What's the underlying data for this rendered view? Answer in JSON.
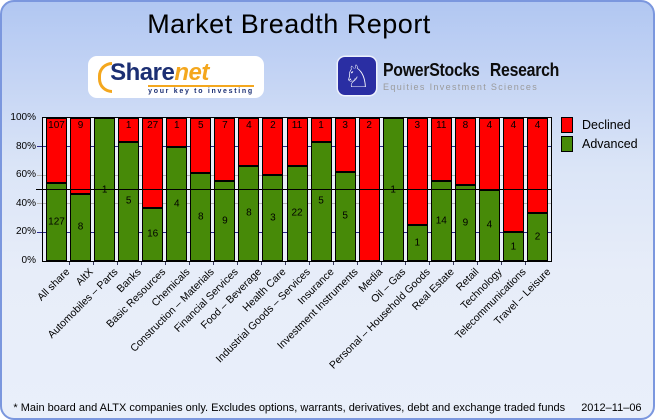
{
  "header": {
    "title": "Market Breadth Report"
  },
  "logos": {
    "sharenet": {
      "word_main": "Share",
      "word_accent": "net",
      "tagline": "your key to investing"
    },
    "powerstocks": {
      "knight_glyph": "♘",
      "name": "PowerStocks Research",
      "tagline": "Equities Investment Sciences"
    }
  },
  "legend": {
    "items": [
      {
        "label": "Declined",
        "color": "#ff0000"
      },
      {
        "label": "Advanced",
        "color": "#478a08"
      }
    ]
  },
  "footer": {
    "note": "* Main board and ALTX companies only. Excludes options, warrants, derivatives, debt and exchange traded funds",
    "date": "2012–11–06"
  },
  "chart_data": {
    "type": "bar",
    "variant": "100%-stacked-columns",
    "title": "Market Breadth Report",
    "categories": [
      "All share",
      "AltX",
      "Automobiles – Parts",
      "Banks",
      "Basic Resources",
      "Chemicals",
      "Construction – Materials",
      "Financial Services",
      "Food – Beverage",
      "Health Care",
      "Industrial Goods – Services",
      "Insurance",
      "Investment Instruments",
      "Media",
      "Oil – Gas",
      "Personal – Household Goods",
      "Real Estate",
      "Retail",
      "Technology",
      "Telecommunications",
      "Travel – Leisure"
    ],
    "series": [
      {
        "name": "Declined",
        "color": "#ff0000",
        "counts": [
          107,
          9,
          0,
          1,
          27,
          1,
          5,
          7,
          4,
          2,
          11,
          1,
          3,
          2,
          0,
          3,
          11,
          8,
          4,
          4,
          4
        ]
      },
      {
        "name": "Advanced",
        "color": "#478a08",
        "counts": [
          127,
          8,
          1,
          5,
          16,
          4,
          8,
          9,
          8,
          3,
          22,
          5,
          5,
          0,
          1,
          1,
          14,
          9,
          4,
          1,
          2
        ]
      }
    ],
    "y_axis": {
      "min": 0,
      "max": 100,
      "tick_labels": [
        "100%",
        "80%",
        "60%",
        "40%",
        "20%",
        "0%"
      ],
      "reference_line_pct": 50
    },
    "grid": {
      "levels": [
        80,
        60,
        40,
        20
      ],
      "colors": {
        "80": "#2b2b8c",
        "60": "#b3b3b3",
        "40": "#b3b3b3",
        "20": "#2b2b8c"
      }
    },
    "legend_position": "right",
    "plot_background": "#e9eef7"
  }
}
